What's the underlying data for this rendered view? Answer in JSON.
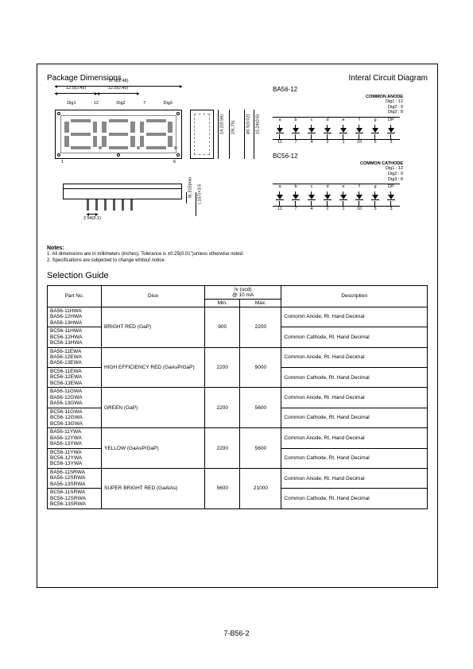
{
  "headings": {
    "package": "Package  Dimensions",
    "circuit": "Interal Circuit Diagram"
  },
  "package": {
    "overall_width": "37.6(1.48)",
    "pitch_a": "12.5(0.49)",
    "pitch_b": "12.5(0.49)",
    "dig_labels": [
      "Dig1",
      "Dig2",
      "Dig3"
    ],
    "top_pins": [
      "12",
      "7"
    ],
    "bot_pins": [
      "1",
      "6"
    ],
    "height_outer": "19(.75)",
    "height_digit": "14.2(0.56)",
    "side_thick": "ø0.5(0.02)",
    "side_height": "15.24(0.6)",
    "pin_pitch": "2.54(0.1)",
    "pin_len": "8(.315)min",
    "pin_gap": "(.157)×3.5"
  },
  "circuit": {
    "anode": {
      "model": "BA56-12",
      "common_label": "COMMON ANODE",
      "dig_map": [
        "Dig1 : 12",
        "Dig2 : 9",
        "Dig3 : 8"
      ],
      "segments": [
        "a",
        "b",
        "c",
        "d",
        "e",
        "f",
        "g",
        "DP"
      ],
      "pins": [
        "11",
        "7",
        "4",
        "2",
        "1",
        "10",
        "5",
        "3"
      ]
    },
    "cathode": {
      "model": "BC56-12",
      "common_label": "COMMON CATHODE",
      "dig_map": [
        "Dig1 : 12",
        "Dig2 : 9",
        "Dig3 : 8"
      ],
      "segments": [
        "a",
        "b",
        "c",
        "d",
        "e",
        "f",
        "g",
        "DP"
      ],
      "pins": [
        "11",
        "7",
        "4",
        "2",
        "1",
        "10",
        "5",
        "3"
      ]
    }
  },
  "notes": {
    "heading": "Notes:",
    "n1": "1. All dimensions are in millimeters (inches), Tolerance is ±0.25(0.01\")unless otherwise noted.",
    "n2": "2. Specifications are subjected to change whitout notice."
  },
  "selection": {
    "title": "Selection Guide",
    "headers": {
      "part": "Part No.",
      "dice": "Dice",
      "iv": "Iv (ucd)\n@ 10 mA",
      "min": "Min.",
      "max": "Max.",
      "desc": "Description"
    },
    "desc_anode": "Comomn Anode, Rt. Hand Decimal",
    "desc_anode2": "Common Anode, Rt. Hand Decimal",
    "desc_cathode": "Common Cathode, Rt. Hand Decimal",
    "groups": [
      {
        "dice": "BRIGHT RED (GaP)",
        "min": "900",
        "max": "2200",
        "anode_parts": [
          "BA56-11HWA",
          "BA56-12HWA",
          "BA56-13HWA"
        ],
        "cathode_parts": [
          "BC56-11HWA",
          "BC56-12HWA",
          "BC56-13HWA"
        ]
      },
      {
        "dice": "HIGH EFFICIENCY RED (GaAsP/GaP)",
        "min": "2200",
        "max": "9000",
        "anode_parts": [
          "BA56-11EWA",
          "BA56-12EWA",
          "BA56-13EWA"
        ],
        "cathode_parts": [
          "BC56-11EWA",
          "BC56-12EWA",
          "BC56-13EWA"
        ]
      },
      {
        "dice": "GREEN (GaP)",
        "min": "2200",
        "max": "5600",
        "anode_parts": [
          "BA56-11GWA",
          "BA56-12GWA",
          "BA56-13GWA"
        ],
        "cathode_parts": [
          "BC56-11GWA",
          "BC56-12GWA",
          "BC56-13GWA"
        ]
      },
      {
        "dice": "YELLOW (GaAsP/GaP)",
        "min": "2200",
        "max": "5600",
        "anode_parts": [
          "BA56-11YWA",
          "BA56-12YWA",
          "BA56-13YWA"
        ],
        "cathode_parts": [
          "BC56-11YWA",
          "BC56-12YWA",
          "BC56-13YWA"
        ]
      },
      {
        "dice": "SUPER BRIGHT RED (GaAlAs)",
        "min": "5600",
        "max": "21000",
        "anode_parts": [
          "BA56-11SRWA",
          "BA56-12SRWA",
          "BA56-13SRWA"
        ],
        "cathode_parts": [
          "BC56-11SRWA",
          "BC56-12SRWA",
          "BC56-13SRWA"
        ]
      }
    ]
  },
  "footer": "7-B56-2",
  "style": {
    "page_bg": "#ffffff",
    "text_color": "#000000",
    "border_color": "#000000",
    "seg_color": "#888888",
    "table_font_size": 6.5,
    "body_font_size": 6,
    "heading_font_size": 10
  }
}
